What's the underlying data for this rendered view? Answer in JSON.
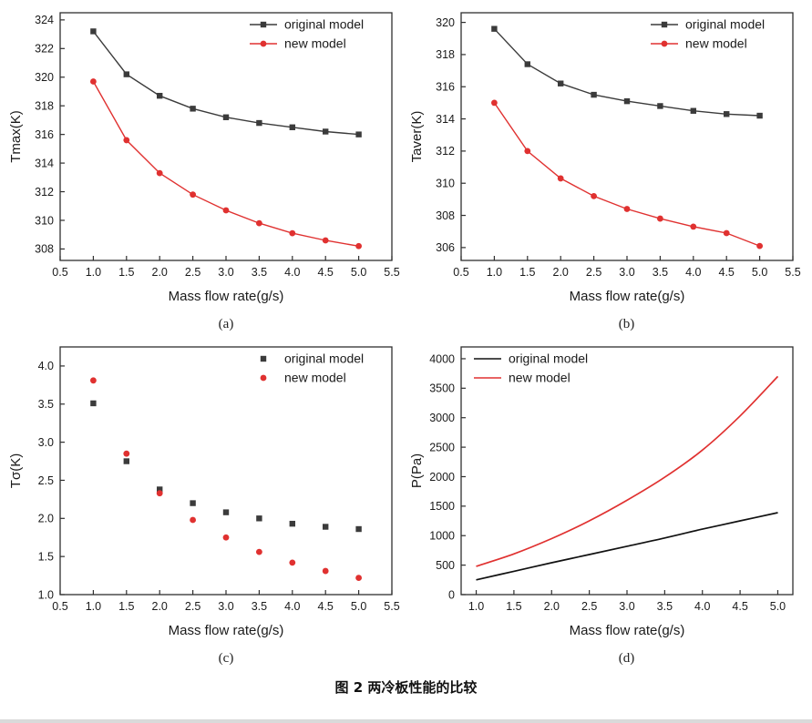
{
  "caption": "图 2  两冷板性能的比较",
  "chart_data": [
    {
      "sublabel": "(a)",
      "type": "line",
      "title": "",
      "xlabel": "Mass flow rate(g/s)",
      "ylabel": "Tmax(K)",
      "xlim": [
        0.5,
        5.5
      ],
      "ylim": [
        307.2,
        324.5
      ],
      "xticks": [
        0.5,
        1.0,
        1.5,
        2.0,
        2.5,
        3.0,
        3.5,
        4.0,
        4.5,
        5.0,
        5.5
      ],
      "xtick_labels": [
        "0.5",
        "1.0",
        "1.5",
        "2.0",
        "2.5",
        "3.0",
        "3.5",
        "4.0",
        "4.5",
        "5.0",
        "5.5"
      ],
      "yticks": [
        308,
        310,
        312,
        314,
        316,
        318,
        320,
        322,
        324
      ],
      "ytick_labels": [
        "308",
        "310",
        "312",
        "314",
        "316",
        "318",
        "320",
        "322",
        "324"
      ],
      "grid": false,
      "legend": "tr",
      "x": [
        1.0,
        1.5,
        2.0,
        2.5,
        3.0,
        3.5,
        4.0,
        4.5,
        5.0
      ],
      "series": [
        {
          "name": "original model",
          "color": "#3b3b3b",
          "marker": "square",
          "line": true,
          "smooth": false,
          "values": [
            323.2,
            320.2,
            318.7,
            317.8,
            317.2,
            316.8,
            316.5,
            316.2,
            316.0
          ]
        },
        {
          "name": "new model",
          "color": "#e03130",
          "marker": "circle",
          "line": true,
          "smooth": false,
          "values": [
            319.7,
            315.6,
            313.3,
            311.8,
            310.7,
            309.8,
            309.1,
            308.6,
            308.2
          ]
        }
      ]
    },
    {
      "sublabel": "(b)",
      "type": "line",
      "title": "",
      "xlabel": "Mass flow rate(g/s)",
      "ylabel": "Taver(K)",
      "xlim": [
        0.5,
        5.5
      ],
      "ylim": [
        305.2,
        320.6
      ],
      "xticks": [
        0.5,
        1.0,
        1.5,
        2.0,
        2.5,
        3.0,
        3.5,
        4.0,
        4.5,
        5.0,
        5.5
      ],
      "xtick_labels": [
        "0.5",
        "1.0",
        "1.5",
        "2.0",
        "2.5",
        "3.0",
        "3.5",
        "4.0",
        "4.5",
        "5.0",
        "5.5"
      ],
      "yticks": [
        306,
        308,
        310,
        312,
        314,
        316,
        318,
        320
      ],
      "ytick_labels": [
        "306",
        "308",
        "310",
        "312",
        "314",
        "316",
        "318",
        "320"
      ],
      "grid": false,
      "legend": "tr",
      "x": [
        1.0,
        1.5,
        2.0,
        2.5,
        3.0,
        3.5,
        4.0,
        4.5,
        5.0
      ],
      "series": [
        {
          "name": "original model",
          "color": "#3b3b3b",
          "marker": "square",
          "line": true,
          "smooth": false,
          "values": [
            319.6,
            317.4,
            316.2,
            315.5,
            315.1,
            314.8,
            314.5,
            314.3,
            314.2
          ]
        },
        {
          "name": "new model",
          "color": "#e03130",
          "marker": "circle",
          "line": true,
          "smooth": false,
          "values": [
            315.0,
            312.0,
            310.3,
            309.2,
            308.4,
            307.8,
            307.3,
            306.9,
            306.1
          ]
        }
      ]
    },
    {
      "sublabel": "(c)",
      "type": "scatter",
      "title": "",
      "xlabel": "Mass flow rate(g/s)",
      "ylabel": "Tσ(K)",
      "xlim": [
        0.5,
        5.5
      ],
      "ylim": [
        1.0,
        4.25
      ],
      "xticks": [
        0.5,
        1.0,
        1.5,
        2.0,
        2.5,
        3.0,
        3.5,
        4.0,
        4.5,
        5.0,
        5.5
      ],
      "xtick_labels": [
        "0.5",
        "1.0",
        "1.5",
        "2.0",
        "2.5",
        "3.0",
        "3.5",
        "4.0",
        "4.5",
        "5.0",
        "5.5"
      ],
      "yticks": [
        1.0,
        1.5,
        2.0,
        2.5,
        3.0,
        3.5,
        4.0
      ],
      "ytick_labels": [
        "1.0",
        "1.5",
        "2.0",
        "2.5",
        "3.0",
        "3.5",
        "4.0"
      ],
      "grid": false,
      "legend": "tr",
      "x": [
        1.0,
        1.5,
        2.0,
        2.5,
        3.0,
        3.5,
        4.0,
        4.5,
        5.0
      ],
      "series": [
        {
          "name": "original model",
          "color": "#3b3b3b",
          "marker": "square",
          "line": false,
          "smooth": false,
          "values": [
            3.51,
            2.75,
            2.38,
            2.2,
            2.08,
            2.0,
            1.93,
            1.89,
            1.86
          ]
        },
        {
          "name": "new model",
          "color": "#e03130",
          "marker": "circle",
          "line": false,
          "smooth": false,
          "values": [
            3.81,
            2.85,
            2.33,
            1.98,
            1.75,
            1.56,
            1.42,
            1.31,
            1.22
          ]
        }
      ]
    },
    {
      "sublabel": "(d)",
      "type": "line",
      "title": "",
      "xlabel": "Mass flow rate(g/s)",
      "ylabel": "P(Pa)",
      "xlim": [
        0.8,
        5.2
      ],
      "ylim": [
        0,
        4200
      ],
      "xticks": [
        1.0,
        1.5,
        2.0,
        2.5,
        3.0,
        3.5,
        4.0,
        4.5,
        5.0
      ],
      "xtick_labels": [
        "1.0",
        "1.5",
        "2.0",
        "2.5",
        "3.0",
        "3.5",
        "4.0",
        "4.5",
        "5.0"
      ],
      "yticks": [
        0,
        500,
        1000,
        1500,
        2000,
        2500,
        3000,
        3500,
        4000
      ],
      "ytick_labels": [
        "0",
        "500",
        "1000",
        "1500",
        "2000",
        "2500",
        "3000",
        "3500",
        "4000"
      ],
      "grid": false,
      "legend": "tl",
      "x": [
        1.0,
        1.5,
        2.0,
        2.5,
        3.0,
        3.5,
        4.0,
        4.5,
        5.0
      ],
      "series": [
        {
          "name": "original model",
          "color": "#111111",
          "marker": null,
          "line": true,
          "smooth": true,
          "width": 1.7,
          "values": [
            250,
            395,
            540,
            680,
            820,
            960,
            1110,
            1250,
            1390
          ]
        },
        {
          "name": "new model",
          "color": "#e03130",
          "marker": null,
          "line": true,
          "smooth": true,
          "width": 1.7,
          "values": [
            480,
            690,
            950,
            1250,
            1600,
            1990,
            2450,
            3030,
            3700
          ]
        }
      ]
    }
  ]
}
